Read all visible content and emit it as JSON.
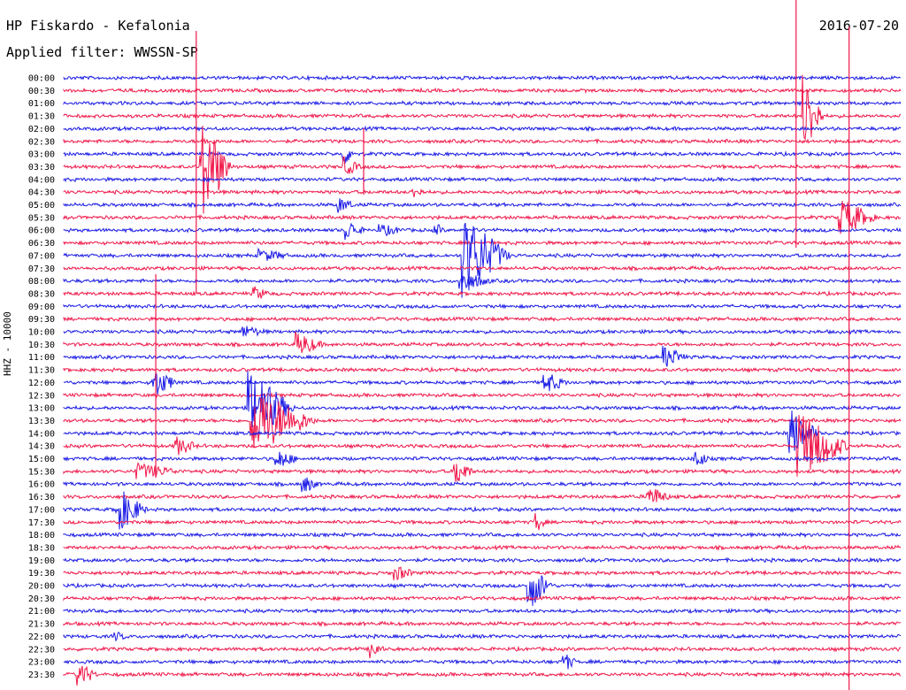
{
  "header": {
    "station": "HP Fiskardo - Kefalonia",
    "filter": "Applied filter: WWSSN-SP",
    "date": "2016-07-20",
    "channel": "HHZ - 10000"
  },
  "colors": {
    "blue": "#1a1ae6",
    "red": "#f0184a",
    "text": "#000000"
  },
  "chart_data": {
    "type": "line",
    "title": "HP Fiskardo - Kefalonia",
    "subtitle": "Applied filter: WWSSN-SP",
    "ylabel": "HHZ - 10000",
    "row_labels": [
      "00:00",
      "00:30",
      "01:00",
      "01:30",
      "02:00",
      "02:30",
      "03:00",
      "03:30",
      "04:00",
      "04:30",
      "05:00",
      "05:30",
      "06:00",
      "06:30",
      "07:00",
      "07:30",
      "08:00",
      "08:30",
      "09:00",
      "09:30",
      "10:00",
      "10:30",
      "11:00",
      "11:30",
      "12:00",
      "12:30",
      "13:00",
      "13:30",
      "14:00",
      "14:30",
      "15:00",
      "15:30",
      "16:00",
      "16:30",
      "17:00",
      "17:30",
      "18:00",
      "18:30",
      "19:00",
      "19:30",
      "20:00",
      "20:30",
      "21:00",
      "21:30",
      "22:00",
      "22:30",
      "23:00",
      "23:30"
    ],
    "row_minutes": 30,
    "color_cycle": [
      "blue",
      "red"
    ],
    "events": [
      {
        "row": 5,
        "x_min": 5.0,
        "amp": 5,
        "dur": 0.8
      },
      {
        "row": 6,
        "x_min": 10.0,
        "amp": 14,
        "dur": 0.6
      },
      {
        "row": 7,
        "x_min": 4.9,
        "amp": 60,
        "dur": 1.2
      },
      {
        "row": 7,
        "x_min": 10.0,
        "amp": 12,
        "dur": 0.8
      },
      {
        "row": 3,
        "x_min": 26.5,
        "amp": 48,
        "dur": 0.8
      },
      {
        "row": 9,
        "x_min": 12.5,
        "amp": 8,
        "dur": 0.6
      },
      {
        "row": 10,
        "x_min": 9.8,
        "amp": 10,
        "dur": 0.8
      },
      {
        "row": 11,
        "x_min": 27.8,
        "amp": 22,
        "dur": 1.5
      },
      {
        "row": 12,
        "x_min": 10.1,
        "amp": 13,
        "dur": 0.8
      },
      {
        "row": 12,
        "x_min": 11.3,
        "amp": 8,
        "dur": 1.2
      },
      {
        "row": 12,
        "x_min": 13.3,
        "amp": 10,
        "dur": 0.4
      },
      {
        "row": 14,
        "x_min": 7.0,
        "amp": 8,
        "dur": 1.5
      },
      {
        "row": 14,
        "x_min": 14.3,
        "amp": 48,
        "dur": 1.8
      },
      {
        "row": 16,
        "x_min": 14.2,
        "amp": 12,
        "dur": 1.4
      },
      {
        "row": 17,
        "x_min": 6.8,
        "amp": 9,
        "dur": 0.8
      },
      {
        "row": 20,
        "x_min": 6.4,
        "amp": 8,
        "dur": 1.2
      },
      {
        "row": 21,
        "x_min": 8.3,
        "amp": 15,
        "dur": 1.2
      },
      {
        "row": 22,
        "x_min": 21.5,
        "amp": 14,
        "dur": 1.0
      },
      {
        "row": 24,
        "x_min": 3.2,
        "amp": 18,
        "dur": 1.0
      },
      {
        "row": 24,
        "x_min": 17.2,
        "amp": 14,
        "dur": 1.0
      },
      {
        "row": 26,
        "x_min": 6.6,
        "amp": 42,
        "dur": 1.8
      },
      {
        "row": 27,
        "x_min": 6.7,
        "amp": 40,
        "dur": 2.5
      },
      {
        "row": 28,
        "x_min": 26.0,
        "amp": 30,
        "dur": 1.2
      },
      {
        "row": 29,
        "x_min": 4.0,
        "amp": 12,
        "dur": 1.0
      },
      {
        "row": 29,
        "x_min": 26.3,
        "amp": 40,
        "dur": 2.0
      },
      {
        "row": 30,
        "x_min": 7.6,
        "amp": 12,
        "dur": 1.0
      },
      {
        "row": 30,
        "x_min": 22.6,
        "amp": 14,
        "dur": 0.6
      },
      {
        "row": 31,
        "x_min": 2.6,
        "amp": 10,
        "dur": 2.0
      },
      {
        "row": 31,
        "x_min": 14.0,
        "amp": 18,
        "dur": 0.8
      },
      {
        "row": 32,
        "x_min": 8.5,
        "amp": 12,
        "dur": 0.8
      },
      {
        "row": 33,
        "x_min": 20.9,
        "amp": 14,
        "dur": 1.0
      },
      {
        "row": 34,
        "x_min": 1.9,
        "amp": 26,
        "dur": 1.2
      },
      {
        "row": 35,
        "x_min": 16.9,
        "amp": 12,
        "dur": 0.5
      },
      {
        "row": 39,
        "x_min": 11.8,
        "amp": 10,
        "dur": 1.0
      },
      {
        "row": 40,
        "x_min": 16.6,
        "amp": 30,
        "dur": 1.0
      },
      {
        "row": 44,
        "x_min": 1.8,
        "amp": 6,
        "dur": 0.8
      },
      {
        "row": 45,
        "x_min": 11.0,
        "amp": 12,
        "dur": 0.6
      },
      {
        "row": 46,
        "x_min": 17.9,
        "amp": 12,
        "dur": 0.6
      },
      {
        "row": 47,
        "x_min": 0.5,
        "amp": 16,
        "dur": 0.8
      }
    ],
    "spikes": [
      {
        "x_min": 4.75,
        "y_top": 35,
        "y_bottom": 330
      },
      {
        "x_min": 10.75,
        "y_top": 145,
        "y_bottom": 220
      },
      {
        "x_min": 26.25,
        "y_top": 0,
        "y_bottom": 280
      },
      {
        "x_min": 28.15,
        "y_top": 30,
        "y_bottom": 780
      },
      {
        "x_min": 3.3,
        "y_top": 310,
        "y_bottom": 540
      }
    ]
  }
}
